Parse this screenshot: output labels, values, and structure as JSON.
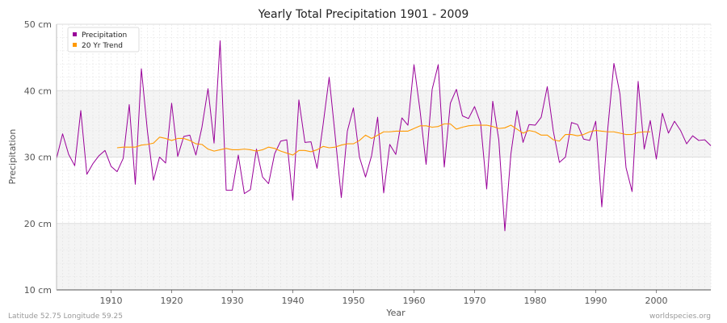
{
  "chart_data": {
    "type": "line",
    "title": "Yearly Total Precipitation 1901 - 2009",
    "xlabel": "Year",
    "ylabel": "Precipitation",
    "x_range": [
      1901,
      2009
    ],
    "ylim": [
      10,
      50
    ],
    "x_ticks": [
      1910,
      1920,
      1930,
      1940,
      1950,
      1960,
      1970,
      1980,
      1990,
      2000
    ],
    "y_ticks": [
      {
        "value": 10,
        "label": "10 cm"
      },
      {
        "value": 20,
        "label": "20 cm"
      },
      {
        "value": 30,
        "label": "30 cm"
      },
      {
        "value": 40,
        "label": "40 cm"
      },
      {
        "value": 50,
        "label": "50 cm"
      }
    ],
    "grid": true,
    "legend_position": "top-left",
    "series": [
      {
        "name": "Precipitation",
        "color": "#990099",
        "x_start": 1901,
        "values": [
          29.8,
          33.5,
          30.4,
          28.7,
          37.0,
          27.4,
          29.0,
          30.2,
          31.0,
          28.6,
          27.8,
          29.8,
          37.9,
          25.9,
          43.3,
          33.9,
          26.5,
          30.0,
          29.1,
          38.1,
          30.1,
          33.1,
          33.3,
          30.3,
          34.5,
          40.3,
          32.1,
          47.5,
          25.0,
          25.0,
          30.3,
          24.5,
          25.1,
          31.2,
          27.0,
          26.0,
          30.5,
          32.4,
          32.6,
          23.5,
          38.6,
          32.2,
          32.3,
          28.3,
          34.9,
          42.0,
          33.1,
          23.9,
          33.9,
          37.4,
          30.0,
          27.0,
          30.2,
          36.0,
          24.6,
          31.9,
          30.4,
          35.9,
          34.8,
          43.9,
          37.0,
          28.9,
          40.2,
          43.9,
          28.5,
          38.1,
          40.2,
          36.2,
          35.8,
          37.6,
          35.1,
          25.2,
          38.4,
          32.6,
          18.9,
          30.5,
          37.0,
          32.2,
          34.9,
          34.8,
          36.0,
          40.6,
          33.9,
          29.2,
          30.0,
          35.2,
          34.9,
          32.7,
          32.5,
          35.4,
          22.5,
          34.4,
          44.1,
          39.5,
          28.4,
          24.8,
          41.4,
          31.2,
          35.5,
          29.7,
          36.6,
          33.6,
          35.4,
          34.0,
          32.0,
          33.2,
          32.5,
          32.6,
          31.7
        ]
      },
      {
        "name": "20 Yr Trend",
        "color": "#ff9900",
        "x_start": 1911,
        "values": [
          31.4,
          31.5,
          31.5,
          31.5,
          31.8,
          31.9,
          32.1,
          33.0,
          32.8,
          32.5,
          32.8,
          32.8,
          32.5,
          32.0,
          31.9,
          31.2,
          30.9,
          31.1,
          31.3,
          31.1,
          31.1,
          31.2,
          31.1,
          30.9,
          31.1,
          31.5,
          31.3,
          30.9,
          30.6,
          30.3,
          31.0,
          31.0,
          30.8,
          31.1,
          31.6,
          31.4,
          31.5,
          31.8,
          32.0,
          32.0,
          32.5,
          33.3,
          32.8,
          33.3,
          33.8,
          33.8,
          33.9,
          33.9,
          33.9,
          34.3,
          34.7,
          34.7,
          34.5,
          34.6,
          35.0,
          35.0,
          34.2,
          34.5,
          34.7,
          34.8,
          34.8,
          34.8,
          34.6,
          34.3,
          34.4,
          34.8,
          34.2,
          33.6,
          34.0,
          33.8,
          33.3,
          33.3,
          32.6,
          32.4,
          33.4,
          33.4,
          33.2,
          33.4,
          33.8,
          34.0,
          33.9,
          33.8,
          33.8,
          33.6,
          33.4,
          33.4,
          33.7,
          33.8,
          33.8
        ]
      }
    ]
  },
  "footer": {
    "location": "Latitude 52.75 Longitude 59.25",
    "source": "worldspecies.org"
  }
}
